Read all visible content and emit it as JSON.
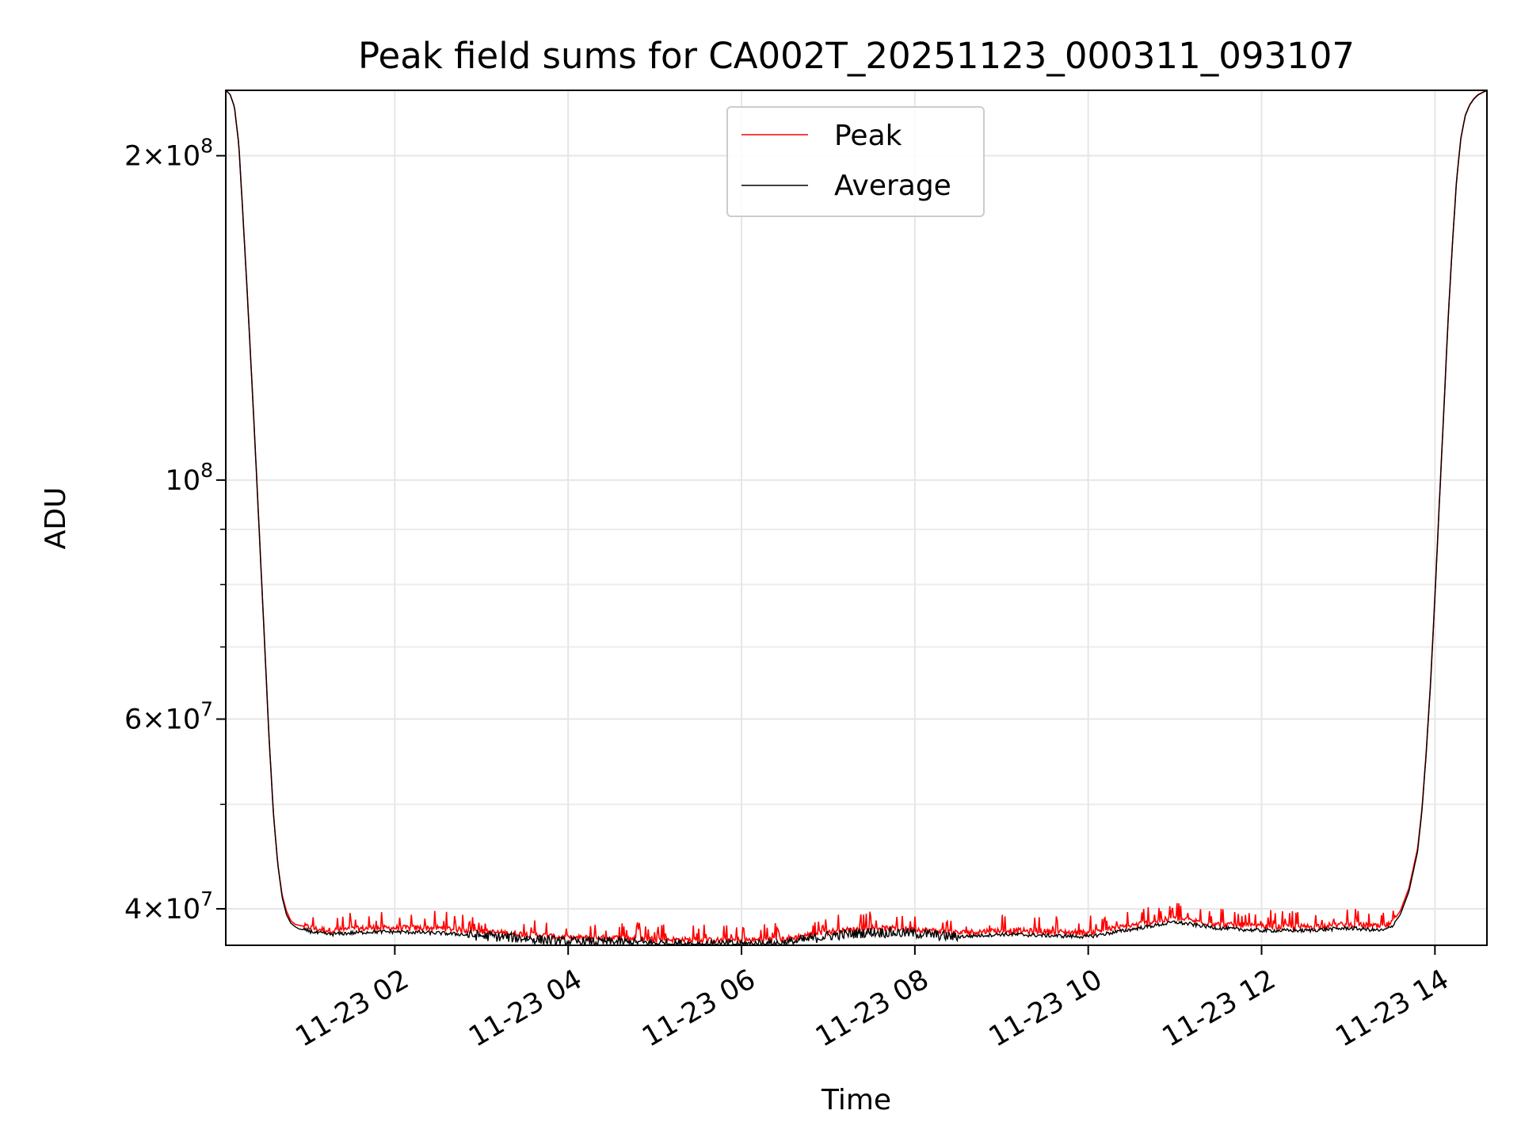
{
  "chart_data": {
    "type": "line",
    "title": "Peak field sums for CA002T_20251123_000311_093107",
    "xlabel": "Time",
    "ylabel": "ADU",
    "yscale": "log",
    "xlim_hours": [
      0.05,
      14.6
    ],
    "ylim": [
      37000000,
      230000000
    ],
    "grid": true,
    "legend_position": "upper center",
    "x_ticks": [
      {
        "hour": 2,
        "label": "11-23 02"
      },
      {
        "hour": 4,
        "label": "11-23 04"
      },
      {
        "hour": 6,
        "label": "11-23 06"
      },
      {
        "hour": 8,
        "label": "11-23 08"
      },
      {
        "hour": 10,
        "label": "11-23 10"
      },
      {
        "hour": 12,
        "label": "11-23 12"
      },
      {
        "hour": 14,
        "label": "11-23 14"
      }
    ],
    "y_ticks_major": [
      {
        "value": 40000000,
        "mantissa": "4",
        "exp": "7"
      },
      {
        "value": 60000000,
        "mantissa": "6",
        "exp": "7"
      },
      {
        "value": 100000000,
        "mantissa": "",
        "exp": "8"
      },
      {
        "value": 200000000,
        "mantissa": "2",
        "exp": "8"
      }
    ],
    "y_ticks_minor": [
      50000000,
      70000000,
      80000000,
      90000000
    ],
    "series": [
      {
        "name": "Peak",
        "color": "#ff0000",
        "x": [
          0.05,
          0.1,
          0.15,
          0.2,
          0.25,
          0.3,
          0.35,
          0.4,
          0.45,
          0.5,
          0.55,
          0.6,
          0.65,
          0.7,
          0.75,
          0.8,
          0.85,
          0.9,
          1.0,
          1.1,
          1.25,
          1.5,
          1.75,
          2.0,
          2.5,
          3.0,
          3.5,
          4.0,
          4.5,
          5.0,
          5.5,
          6.0,
          6.5,
          7.0,
          7.5,
          8.0,
          8.5,
          9.0,
          9.5,
          10.0,
          10.5,
          11.0,
          11.5,
          12.0,
          12.5,
          13.0,
          13.4,
          13.5,
          13.6,
          13.7,
          13.8,
          13.85,
          13.9,
          13.95,
          14.0,
          14.05,
          14.1,
          14.15,
          14.2,
          14.25,
          14.3,
          14.35,
          14.4,
          14.45,
          14.5,
          14.6
        ],
        "values": [
          230000000,
          228000000,
          222000000,
          205000000,
          175000000,
          148000000,
          124000000,
          103000000,
          85000000,
          70000000,
          57500000,
          49000000,
          44000000,
          41200000,
          39800000,
          39000000,
          38700000,
          38600000,
          38500000,
          38300000,
          38200000,
          38300000,
          38400000,
          38400000,
          38400000,
          38100000,
          37900000,
          37600000,
          37600000,
          37500000,
          37400000,
          37400000,
          37500000,
          38100000,
          38400000,
          38300000,
          38000000,
          38200000,
          38100000,
          38000000,
          38600000,
          39200000,
          38700000,
          38500000,
          38500000,
          38700000,
          38500000,
          38800000,
          39800000,
          41800000,
          45500000,
          49500000,
          56000000,
          65000000,
          78000000,
          95000000,
          115000000,
          140000000,
          165000000,
          190000000,
          208000000,
          218000000,
          223000000,
          226000000,
          228000000,
          230000000
        ]
      },
      {
        "name": "Average",
        "color": "#000000",
        "x": [
          0.05,
          0.1,
          0.15,
          0.2,
          0.25,
          0.3,
          0.35,
          0.4,
          0.45,
          0.5,
          0.55,
          0.6,
          0.65,
          0.7,
          0.75,
          0.8,
          0.85,
          0.9,
          1.0,
          1.1,
          1.25,
          1.5,
          1.75,
          2.0,
          2.5,
          3.0,
          3.5,
          4.0,
          4.5,
          5.0,
          5.5,
          6.0,
          6.5,
          7.0,
          7.5,
          8.0,
          8.5,
          9.0,
          9.5,
          10.0,
          10.5,
          11.0,
          11.5,
          12.0,
          12.5,
          13.0,
          13.4,
          13.5,
          13.6,
          13.7,
          13.8,
          13.85,
          13.9,
          13.95,
          14.0,
          14.05,
          14.1,
          14.15,
          14.2,
          14.25,
          14.3,
          14.35,
          14.4,
          14.45,
          14.5,
          14.6
        ],
        "values": [
          230000000,
          228000000,
          222000000,
          205000000,
          175000000,
          148000000,
          124000000,
          103000000,
          85000000,
          70000000,
          57500000,
          49000000,
          44000000,
          41000000,
          39500000,
          38800000,
          38500000,
          38300000,
          38200000,
          38000000,
          37900000,
          38000000,
          38100000,
          38100000,
          38000000,
          37800000,
          37600000,
          37300000,
          37300000,
          37200000,
          37100000,
          37100000,
          37200000,
          37800000,
          38100000,
          38000000,
          37700000,
          37900000,
          37800000,
          37700000,
          38300000,
          38900000,
          38400000,
          38200000,
          38200000,
          38400000,
          38200000,
          38500000,
          39500000,
          41500000,
          45200000,
          49300000,
          55800000,
          64800000,
          77800000,
          94800000,
          114800000,
          139800000,
          164800000,
          189800000,
          207800000,
          217800000,
          222800000,
          225800000,
          227800000,
          230000000
        ]
      }
    ]
  }
}
